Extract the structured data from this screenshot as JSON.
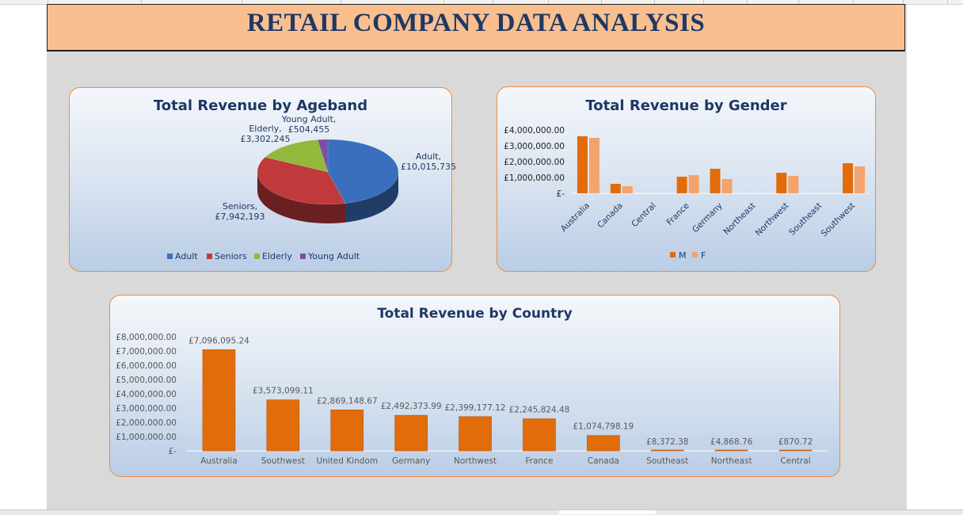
{
  "header": {
    "title": "RETAIL COMPANY DATA ANALYSIS"
  },
  "colors": {
    "banner": "#f9bf8f",
    "title_text": "#1f3864",
    "bar_orange": "#e36c0a",
    "bar_light": "#f4a36c",
    "panel_border": "#f08c3a"
  },
  "chart_data": [
    {
      "type": "pie",
      "title": "Total Revenue by Ageband",
      "slices": [
        {
          "name": "Adult",
          "value": 10015735,
          "label": "Adult, £10,015,735",
          "color": "#3a6fbd"
        },
        {
          "name": "Seniors",
          "value": 7942193,
          "label": "Seniors, £7,942,193",
          "color": "#c0393b"
        },
        {
          "name": "Elderly",
          "value": 3302245,
          "label": "Elderly, £3,302,245",
          "color": "#92b83c"
        },
        {
          "name": "Young Adult",
          "value": 504455,
          "label": "Young Adult, £504,455",
          "color": "#7b4ea3"
        }
      ],
      "legend": [
        "Adult",
        "Seniors",
        "Elderly",
        "Young Adult"
      ],
      "legend_position": "bottom"
    },
    {
      "type": "bar",
      "title": "Total Revenue by Gender",
      "categories": [
        "Australia",
        "Canada",
        "Central",
        "France",
        "Germany",
        "Northeast",
        "Northwest",
        "Southeast",
        "Southwest"
      ],
      "series": [
        {
          "name": "M",
          "values": [
            3600000,
            600000,
            0,
            1050000,
            1550000,
            0,
            1300000,
            0,
            1900000
          ],
          "color": "#e36c0a"
        },
        {
          "name": "F",
          "values": [
            3500000,
            450000,
            0,
            1150000,
            900000,
            0,
            1100000,
            0,
            1700000
          ],
          "color": "#f4a36c"
        }
      ],
      "ylim": [
        0,
        4000000
      ],
      "yticks": [
        "£4,000,000.00",
        "£3,000,000.00",
        "£2,000,000.00",
        "£1,000,000.00",
        "£-"
      ],
      "legend_position": "bottom"
    },
    {
      "type": "bar",
      "title": "Total Revenue by Country",
      "categories": [
        "Australia",
        "Southwest",
        "United Kindom",
        "Germany",
        "Northwest",
        "France",
        "Canada",
        "Southeast",
        "Northeast",
        "Central"
      ],
      "values": [
        7096095.24,
        3573099.11,
        2869148.67,
        2492373.99,
        2399177.12,
        2245824.48,
        1074798.19,
        8372.38,
        4868.76,
        870.72
      ],
      "data_labels": [
        "£7,096,095.24",
        "£3,573,099.11",
        "£2,869,148.67",
        "£2,492,373.99",
        "£2,399,177.12",
        "£2,245,824.48",
        "£1,074,798.19",
        "£8,372.38",
        "£4,868.76",
        "£870.72"
      ],
      "ylim": [
        0,
        8000000
      ],
      "yticks": [
        "£8,000,000.00",
        "£7,000,000.00",
        "£6,000,000.00",
        "£5,000,000.00",
        "£4,000,000.00",
        "£3,000,000.00",
        "£2,000,000.00",
        "£1,000,000.00",
        "£-"
      ],
      "grid": false
    }
  ]
}
